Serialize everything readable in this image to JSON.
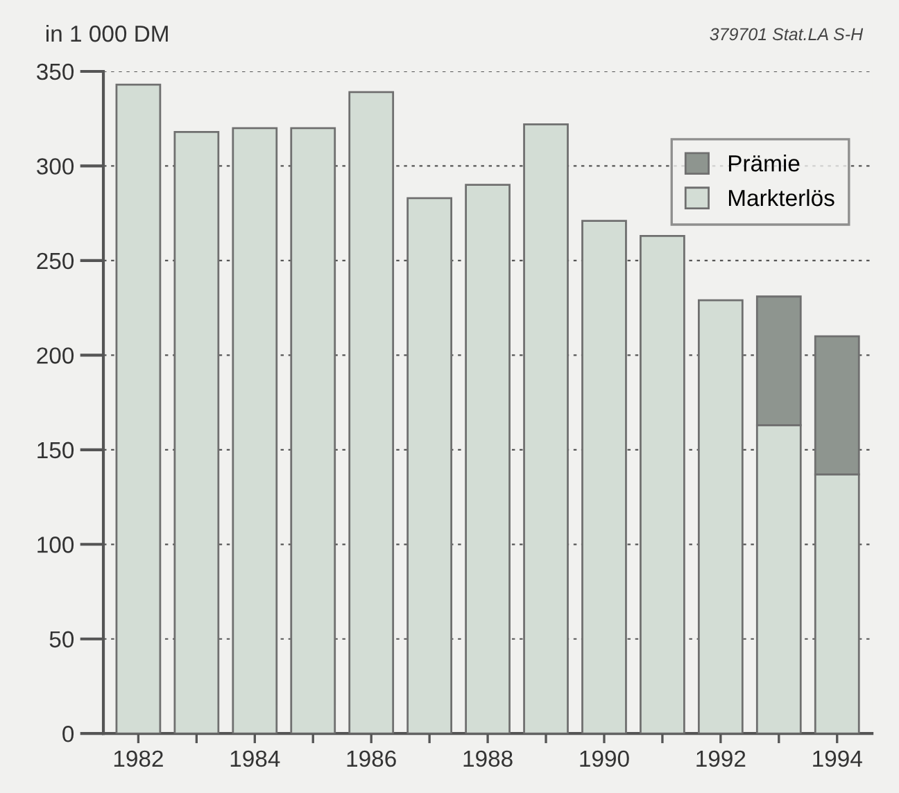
{
  "chart_data": {
    "type": "bar",
    "stacked": true,
    "ylabel": "in 1 000 DM",
    "annotations": [
      "379701 Stat.LA S-H"
    ],
    "categories": [
      "1982",
      null,
      "1984",
      null,
      "1986",
      null,
      "1988",
      null,
      "1990",
      null,
      "1992",
      null,
      "1994"
    ],
    "series": [
      {
        "name": "Markterlös",
        "color": "#d3ddd5",
        "values": [
          343,
          318,
          320,
          320,
          339,
          283,
          290,
          322,
          271,
          263,
          229,
          163,
          137
        ]
      },
      {
        "name": "Prämie",
        "color": "#8e958f",
        "values": [
          null,
          null,
          null,
          null,
          null,
          null,
          null,
          null,
          null,
          null,
          null,
          68,
          73
        ]
      }
    ],
    "ylim": [
      0,
      350
    ],
    "yticks": [
      0,
      50,
      100,
      150,
      200,
      250,
      300,
      350
    ],
    "grid": "y",
    "legend": "top right"
  }
}
